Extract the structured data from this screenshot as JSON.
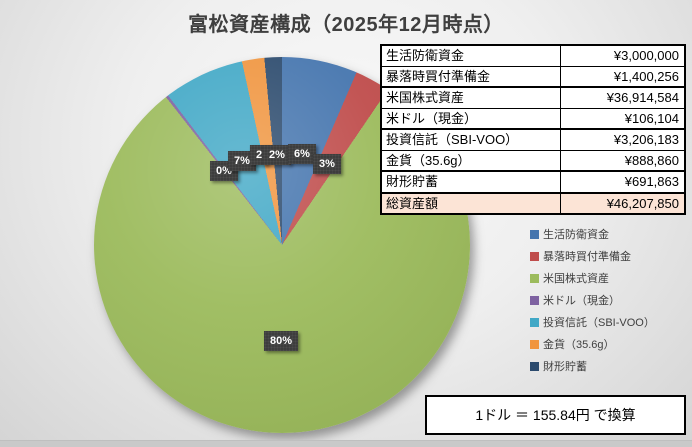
{
  "title": "富松資産構成（2025年12月時点）",
  "chart_data": {
    "type": "pie",
    "title": "富松資産構成（2025年12月時点）",
    "categories": [
      "生活防衛資金",
      "暴落時買付準備金",
      "米国株式資産",
      "米ドル（現金）",
      "投資信託（SBI-VOO）",
      "金貨（35.6g）",
      "財形貯蓄"
    ],
    "values_yen": [
      3000000,
      1400256,
      36914584,
      106104,
      3206183,
      888860,
      691863
    ],
    "total_yen": 46207850,
    "percent": [
      6.49,
      3.03,
      79.89,
      0.23,
      6.94,
      1.92,
      1.5
    ],
    "slice_percent_labels": [
      "6%",
      "3%",
      "80%",
      "0%",
      "7%",
      "2%",
      "2%"
    ],
    "colors": [
      "#4575AE",
      "#BF4C4B",
      "#9CBB5C",
      "#7E62A1",
      "#41A8C6",
      "#F0953F",
      "#2B4A6D"
    ],
    "start_angle_deg": 0,
    "direction": "clockwise",
    "legend_position": "right"
  },
  "pie_labels": [
    "0%",
    "7%",
    "2",
    "2%",
    "6%",
    "3%",
    "80%"
  ],
  "table": {
    "rows": [
      {
        "label": "生活防衛資金",
        "value": "¥3,000,000"
      },
      {
        "label": "暴落時買付準備金",
        "value": "¥1,400,256"
      },
      {
        "label": "米国株式資産",
        "value": "¥36,914,584"
      },
      {
        "label": "米ドル（現金）",
        "value": "¥106,104"
      },
      {
        "label": "投資信託（SBI-VOO）",
        "value": "¥3,206,183"
      },
      {
        "label": "金貨（35.6g）",
        "value": "¥888,860"
      },
      {
        "label": "財形貯蓄",
        "value": "¥691,863"
      },
      {
        "label": "総資産額",
        "value": "¥46,207,850"
      }
    ],
    "total_row_background": "#FCE4D6"
  },
  "legend": {
    "items": [
      {
        "label": "生活防衛資金",
        "color": "#4575AE"
      },
      {
        "label": "暴落時買付準備金",
        "color": "#BF4C4B"
      },
      {
        "label": "米国株式資産",
        "color": "#9CBB5C"
      },
      {
        "label": "米ドル（現金）",
        "color": "#7E62A1"
      },
      {
        "label": "投資信託（SBI-VOO）",
        "color": "#41A8C6"
      },
      {
        "label": "金貨（35.6g）",
        "color": "#F0953F"
      },
      {
        "label": "財形貯蓄",
        "color": "#2B4A6D"
      }
    ]
  },
  "footer": {
    "note": "1ドル ＝ 155.84円 で換算"
  }
}
